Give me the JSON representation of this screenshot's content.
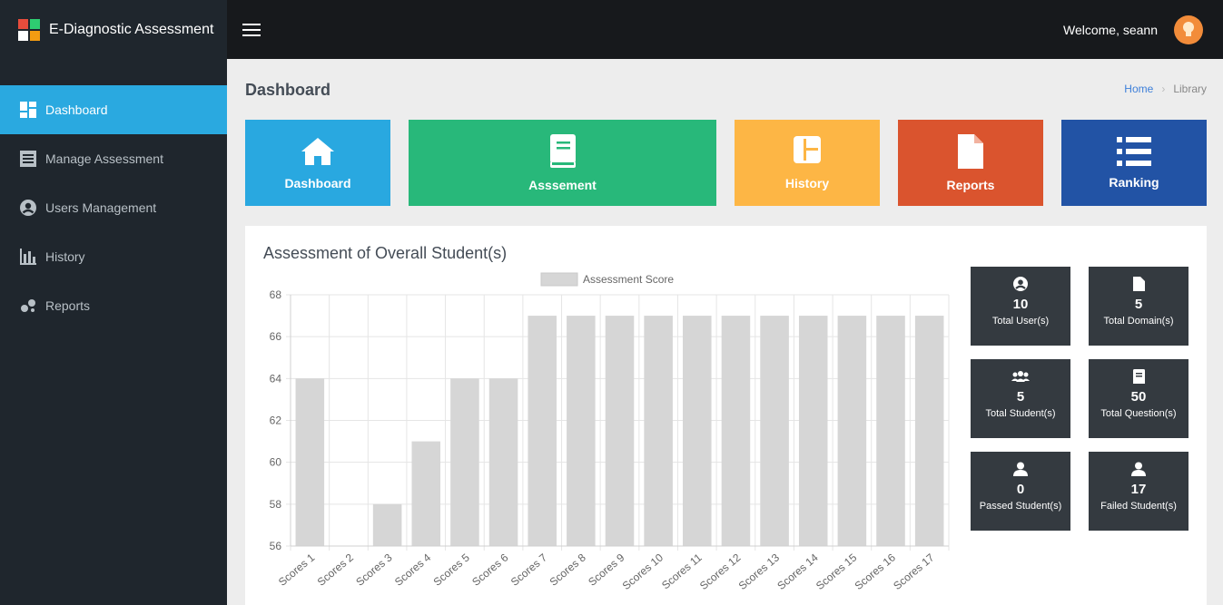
{
  "app": {
    "title": "E-Diagnostic Assessment",
    "logo_colors": [
      "#e74c3c",
      "#2ecc71",
      "#ffffff",
      "#f39c12"
    ]
  },
  "topbar": {
    "welcome": "Welcome, seann",
    "menu_icon": "hamburger-icon",
    "avatar_icon": "lightbulb-avatar"
  },
  "sidebar": {
    "items": [
      {
        "label": "Dashboard",
        "icon": "dashboard-icon",
        "active": true
      },
      {
        "label": "Manage Assessment",
        "icon": "list-icon",
        "active": false
      },
      {
        "label": "Users Management",
        "icon": "user-circle-icon",
        "active": false
      },
      {
        "label": "History",
        "icon": "bar-chart-icon",
        "active": false
      },
      {
        "label": "Reports",
        "icon": "bubbles-icon",
        "active": false
      }
    ]
  },
  "page": {
    "title": "Dashboard"
  },
  "breadcrumb": {
    "home": "Home",
    "current": "Library"
  },
  "tiles": [
    {
      "label": "Dashboard",
      "icon": "home-icon",
      "color": "#29a8e0"
    },
    {
      "label": "Asssement",
      "icon": "book-icon",
      "color": "#28b87a"
    },
    {
      "label": "History",
      "icon": "layout-icon",
      "color": "#fdb645"
    },
    {
      "label": "Reports",
      "icon": "file-icon",
      "color": "#da542e"
    },
    {
      "label": "Ranking",
      "icon": "list-icon",
      "color": "#2253a5"
    }
  ],
  "card": {
    "title": "Assessment of Overall Student(s)"
  },
  "chart_data": {
    "type": "bar",
    "legend": "Assessment Score",
    "categories": [
      "Scores 1",
      "Scores 2",
      "Scores 3",
      "Scores 4",
      "Scores 5",
      "Scores 6",
      "Scores 7",
      "Scores 8",
      "Scores 9",
      "Scores 10",
      "Scores 11",
      "Scores 12",
      "Scores 13",
      "Scores 14",
      "Scores 15",
      "Scores 16",
      "Scores 17"
    ],
    "values": [
      64,
      56,
      58,
      61,
      64,
      64,
      67,
      67,
      67,
      67,
      67,
      67,
      67,
      67,
      67,
      67,
      67
    ],
    "ylim": [
      56,
      68
    ],
    "yticks": [
      56,
      58,
      60,
      62,
      64,
      66,
      68
    ],
    "bar_color": "#d6d6d6",
    "grid": true
  },
  "stats": [
    {
      "value": "10",
      "label": "Total User(s)",
      "icon": "user-circle-icon"
    },
    {
      "value": "5",
      "label": "Total Domain(s)",
      "icon": "file-icon"
    },
    {
      "value": "5",
      "label": "Total Student(s)",
      "icon": "users-icon"
    },
    {
      "value": "50",
      "label": "Total Question(s)",
      "icon": "book-icon"
    },
    {
      "value": "0",
      "label": "Passed Student(s)",
      "icon": "user-icon"
    },
    {
      "value": "17",
      "label": "Failed Student(s)",
      "icon": "user-icon"
    }
  ]
}
